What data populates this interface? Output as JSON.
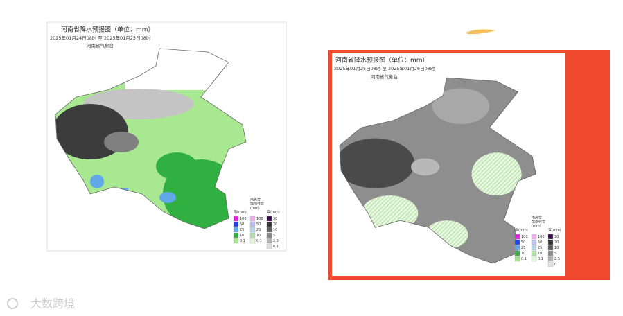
{
  "maps": [
    {
      "title": "河南省降水预报图（单位：mm）",
      "period": "2025年01月24日08时 至 2025年01月25日08时",
      "issuer": "河南省气象台",
      "legend": {
        "rain": {
          "title": "雨(mm)",
          "levels": [
            100,
            50,
            25,
            10,
            0.1
          ]
        },
        "sleet": {
          "title": [
            "雨夹雪",
            "或雨转雪",
            "(mm)"
          ],
          "levels": [
            100,
            50,
            25,
            10,
            0.1
          ]
        },
        "snow": {
          "title": "雪(mm)",
          "levels": [
            30,
            20,
            10,
            5,
            2.5,
            0.1
          ]
        }
      }
    },
    {
      "title": "河南省降水预报图（单位：mm）",
      "period": "2025年01月25日08时 至 2025年01月26日08时",
      "issuer": "河南省气象台",
      "legend": {
        "rain": {
          "title": "雨(mm)",
          "levels": [
            100,
            50,
            25,
            10,
            0.1
          ]
        },
        "sleet": {
          "title": [
            "雨夹雪",
            "或雨转雪",
            "(mm)"
          ],
          "levels": [
            100,
            50,
            25,
            10,
            0.1
          ]
        },
        "snow": {
          "title": "雪(mm)",
          "levels": [
            30,
            20,
            10,
            5,
            2.5,
            0.1
          ]
        }
      }
    }
  ],
  "watermark": "大数跨境"
}
